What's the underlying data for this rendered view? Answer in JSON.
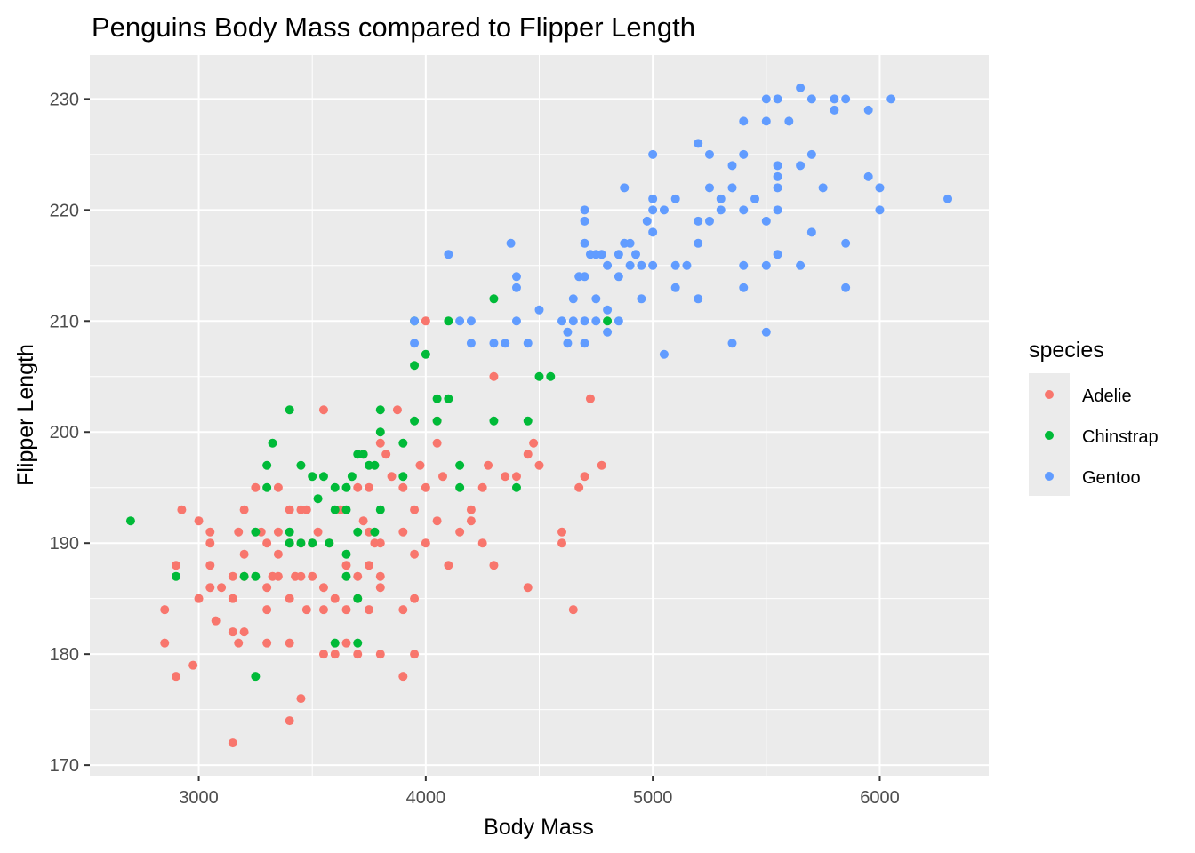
{
  "chart_data": {
    "type": "scatter",
    "title": "Penguins Body Mass compared to Flipper Length",
    "xlabel": "Body Mass",
    "ylabel": "Flipper Length",
    "xlim": [
      2520,
      6480
    ],
    "ylim": [
      169.05,
      233.95
    ],
    "x_ticks": [
      3000,
      4000,
      5000,
      6000
    ],
    "y_ticks": [
      170,
      180,
      190,
      200,
      210,
      220,
      230
    ],
    "grid": true,
    "legend": {
      "title": "species",
      "position": "right"
    },
    "series": [
      {
        "name": "Adelie",
        "color": "#F8766D",
        "points": [
          [
            2850,
            184
          ],
          [
            2850,
            181
          ],
          [
            2900,
            188
          ],
          [
            2900,
            178
          ],
          [
            2925,
            193
          ],
          [
            2975,
            179
          ],
          [
            3000,
            192
          ],
          [
            3000,
            185
          ],
          [
            3050,
            191
          ],
          [
            3050,
            190
          ],
          [
            3050,
            188
          ],
          [
            3050,
            186
          ],
          [
            3075,
            183
          ],
          [
            3100,
            186
          ],
          [
            3150,
            187
          ],
          [
            3150,
            185
          ],
          [
            3150,
            182
          ],
          [
            3150,
            172
          ],
          [
            3175,
            191
          ],
          [
            3175,
            181
          ],
          [
            3200,
            193
          ],
          [
            3200,
            189
          ],
          [
            3200,
            187
          ],
          [
            3200,
            182
          ],
          [
            3250,
            195
          ],
          [
            3275,
            191
          ],
          [
            3300,
            190
          ],
          [
            3300,
            186
          ],
          [
            3300,
            184
          ],
          [
            3300,
            181
          ],
          [
            3325,
            187
          ],
          [
            3350,
            195
          ],
          [
            3350,
            191
          ],
          [
            3350,
            189
          ],
          [
            3350,
            187
          ],
          [
            3400,
            193
          ],
          [
            3400,
            190
          ],
          [
            3400,
            185
          ],
          [
            3400,
            181
          ],
          [
            3400,
            174
          ],
          [
            3425,
            187
          ],
          [
            3450,
            193
          ],
          [
            3450,
            190
          ],
          [
            3450,
            187
          ],
          [
            3450,
            176
          ],
          [
            3475,
            184
          ],
          [
            3475,
            193
          ],
          [
            3500,
            190
          ],
          [
            3500,
            187
          ],
          [
            3525,
            191
          ],
          [
            3550,
            202
          ],
          [
            3550,
            186
          ],
          [
            3550,
            184
          ],
          [
            3550,
            180
          ],
          [
            3575,
            190
          ],
          [
            3600,
            180
          ],
          [
            3600,
            185
          ],
          [
            3625,
            193
          ],
          [
            3650,
            181
          ],
          [
            3650,
            188
          ],
          [
            3650,
            184
          ],
          [
            3700,
            195
          ],
          [
            3700,
            187
          ],
          [
            3700,
            185
          ],
          [
            3700,
            180
          ],
          [
            3725,
            198
          ],
          [
            3725,
            192
          ],
          [
            3750,
            195
          ],
          [
            3750,
            191
          ],
          [
            3750,
            188
          ],
          [
            3750,
            184
          ],
          [
            3775,
            190
          ],
          [
            3800,
            199
          ],
          [
            3800,
            190
          ],
          [
            3800,
            187
          ],
          [
            3800,
            186
          ],
          [
            3800,
            180
          ],
          [
            3825,
            198
          ],
          [
            3850,
            196
          ],
          [
            3875,
            202
          ],
          [
            3900,
            195
          ],
          [
            3900,
            191
          ],
          [
            3900,
            184
          ],
          [
            3900,
            178
          ],
          [
            3950,
            193
          ],
          [
            3950,
            189
          ],
          [
            3950,
            185
          ],
          [
            3950,
            180
          ],
          [
            3975,
            197
          ],
          [
            4000,
            195
          ],
          [
            4000,
            190
          ],
          [
            4000,
            210
          ],
          [
            4050,
            201
          ],
          [
            4050,
            192
          ],
          [
            4050,
            199
          ],
          [
            4075,
            196
          ],
          [
            4100,
            188
          ],
          [
            4150,
            191
          ],
          [
            4200,
            193
          ],
          [
            4200,
            192
          ],
          [
            4250,
            195
          ],
          [
            4250,
            190
          ],
          [
            4275,
            197
          ],
          [
            4300,
            205
          ],
          [
            4300,
            188
          ],
          [
            4350,
            196
          ],
          [
            4400,
            196
          ],
          [
            4450,
            198
          ],
          [
            4450,
            186
          ],
          [
            4475,
            199
          ],
          [
            4500,
            197
          ],
          [
            4600,
            190
          ],
          [
            4600,
            191
          ],
          [
            4650,
            184
          ],
          [
            4675,
            195
          ],
          [
            4700,
            196
          ],
          [
            4725,
            203
          ],
          [
            4775,
            197
          ]
        ]
      },
      {
        "name": "Chinstrap",
        "color": "#00BA38",
        "points": [
          [
            2700,
            192
          ],
          [
            2900,
            187
          ],
          [
            3200,
            187
          ],
          [
            3250,
            191
          ],
          [
            3250,
            187
          ],
          [
            3250,
            178
          ],
          [
            3300,
            197
          ],
          [
            3300,
            195
          ],
          [
            3325,
            199
          ],
          [
            3400,
            202
          ],
          [
            3400,
            191
          ],
          [
            3400,
            190
          ],
          [
            3450,
            197
          ],
          [
            3450,
            190
          ],
          [
            3500,
            196
          ],
          [
            3500,
            190
          ],
          [
            3525,
            194
          ],
          [
            3550,
            196
          ],
          [
            3575,
            190
          ],
          [
            3600,
            195
          ],
          [
            3600,
            193
          ],
          [
            3600,
            181
          ],
          [
            3650,
            195
          ],
          [
            3650,
            193
          ],
          [
            3650,
            189
          ],
          [
            3650,
            187
          ],
          [
            3675,
            196
          ],
          [
            3700,
            198
          ],
          [
            3700,
            191
          ],
          [
            3700,
            185
          ],
          [
            3700,
            181
          ],
          [
            3725,
            198
          ],
          [
            3750,
            197
          ],
          [
            3775,
            197
          ],
          [
            3775,
            191
          ],
          [
            3800,
            202
          ],
          [
            3800,
            200
          ],
          [
            3800,
            193
          ],
          [
            3900,
            199
          ],
          [
            3900,
            196
          ],
          [
            3950,
            210
          ],
          [
            3950,
            206
          ],
          [
            3950,
            201
          ],
          [
            4000,
            207
          ],
          [
            4050,
            203
          ],
          [
            4050,
            201
          ],
          [
            4100,
            210
          ],
          [
            4100,
            203
          ],
          [
            4150,
            197
          ],
          [
            4150,
            195
          ],
          [
            4300,
            212
          ],
          [
            4300,
            201
          ],
          [
            4400,
            195
          ],
          [
            4450,
            201
          ],
          [
            4500,
            205
          ],
          [
            4550,
            205
          ],
          [
            4800,
            210
          ]
        ]
      },
      {
        "name": "Gentoo",
        "color": "#619CFF",
        "points": [
          [
            3950,
            210
          ],
          [
            3950,
            208
          ],
          [
            4100,
            216
          ],
          [
            4150,
            210
          ],
          [
            4200,
            210
          ],
          [
            4200,
            208
          ],
          [
            4300,
            208
          ],
          [
            4350,
            208
          ],
          [
            4375,
            217
          ],
          [
            4400,
            214
          ],
          [
            4400,
            213
          ],
          [
            4400,
            210
          ],
          [
            4450,
            208
          ],
          [
            4500,
            211
          ],
          [
            4600,
            210
          ],
          [
            4625,
            208
          ],
          [
            4625,
            209
          ],
          [
            4650,
            212
          ],
          [
            4650,
            210
          ],
          [
            4675,
            214
          ],
          [
            4700,
            220
          ],
          [
            4700,
            219
          ],
          [
            4700,
            217
          ],
          [
            4700,
            214
          ],
          [
            4700,
            210
          ],
          [
            4700,
            208
          ],
          [
            4725,
            216
          ],
          [
            4750,
            216
          ],
          [
            4750,
            212
          ],
          [
            4750,
            210
          ],
          [
            4775,
            216
          ],
          [
            4800,
            215
          ],
          [
            4800,
            211
          ],
          [
            4800,
            209
          ],
          [
            4850,
            216
          ],
          [
            4850,
            214
          ],
          [
            4850,
            210
          ],
          [
            4875,
            222
          ],
          [
            4875,
            217
          ],
          [
            4900,
            217
          ],
          [
            4900,
            215
          ],
          [
            4925,
            216
          ],
          [
            4950,
            215
          ],
          [
            4950,
            212
          ],
          [
            4975,
            219
          ],
          [
            5000,
            225
          ],
          [
            5000,
            221
          ],
          [
            5000,
            220
          ],
          [
            5000,
            218
          ],
          [
            5000,
            215
          ],
          [
            5050,
            220
          ],
          [
            5050,
            207
          ],
          [
            5100,
            221
          ],
          [
            5100,
            215
          ],
          [
            5100,
            213
          ],
          [
            5150,
            215
          ],
          [
            5200,
            226
          ],
          [
            5200,
            219
          ],
          [
            5200,
            217
          ],
          [
            5200,
            212
          ],
          [
            5250,
            225
          ],
          [
            5250,
            222
          ],
          [
            5250,
            219
          ],
          [
            5300,
            221
          ],
          [
            5300,
            220
          ],
          [
            5350,
            224
          ],
          [
            5350,
            222
          ],
          [
            5350,
            208
          ],
          [
            5400,
            228
          ],
          [
            5400,
            225
          ],
          [
            5400,
            220
          ],
          [
            5400,
            215
          ],
          [
            5400,
            213
          ],
          [
            5450,
            221
          ],
          [
            5500,
            230
          ],
          [
            5500,
            228
          ],
          [
            5500,
            219
          ],
          [
            5500,
            215
          ],
          [
            5500,
            209
          ],
          [
            5550,
            230
          ],
          [
            5550,
            224
          ],
          [
            5550,
            223
          ],
          [
            5550,
            222
          ],
          [
            5550,
            220
          ],
          [
            5550,
            216
          ],
          [
            5600,
            228
          ],
          [
            5650,
            231
          ],
          [
            5650,
            224
          ],
          [
            5650,
            215
          ],
          [
            5700,
            230
          ],
          [
            5700,
            225
          ],
          [
            5700,
            218
          ],
          [
            5750,
            222
          ],
          [
            5800,
            230
          ],
          [
            5800,
            229
          ],
          [
            5850,
            230
          ],
          [
            5850,
            217
          ],
          [
            5850,
            213
          ],
          [
            5950,
            229
          ],
          [
            5950,
            223
          ],
          [
            6000,
            222
          ],
          [
            6000,
            220
          ],
          [
            6050,
            230
          ],
          [
            6300,
            221
          ]
        ]
      }
    ]
  }
}
